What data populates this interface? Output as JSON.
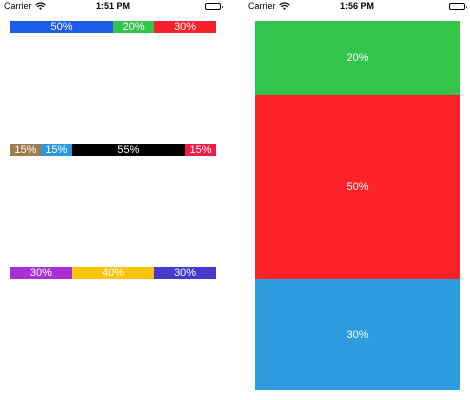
{
  "left_screen": {
    "status_bar": {
      "carrier": "Carrier",
      "time": "1:51 PM",
      "wifi_icon": "wifi-icon",
      "battery_icon": "battery-icon"
    },
    "bars": [
      {
        "segments": [
          {
            "label": "50%",
            "value": 50,
            "color": "#1b5de7"
          },
          {
            "label": "20%",
            "value": 20,
            "color": "#34c44c"
          },
          {
            "label": "30%",
            "value": 30,
            "color": "#f5212c"
          }
        ]
      },
      {
        "segments": [
          {
            "label": "15%",
            "value": 15,
            "color": "#9d7b4e"
          },
          {
            "label": "15%",
            "value": 15,
            "color": "#2c98dc"
          },
          {
            "label": "55%",
            "value": 55,
            "color": "#000000"
          },
          {
            "label": "15%",
            "value": 15,
            "color": "#ef1d45"
          }
        ]
      },
      {
        "segments": [
          {
            "label": "30%",
            "value": 30,
            "color": "#a830d4"
          },
          {
            "label": "40%",
            "value": 40,
            "color": "#fbc408"
          },
          {
            "label": "30%",
            "value": 30,
            "color": "#4739cc"
          }
        ]
      }
    ]
  },
  "right_screen": {
    "status_bar": {
      "carrier": "Carrier",
      "time": "1:56 PM",
      "wifi_icon": "wifi-icon",
      "battery_icon": "battery-icon"
    },
    "stacked_bar": {
      "segments": [
        {
          "label": "20%",
          "value": 20,
          "color": "#33c44c"
        },
        {
          "label": "50%",
          "value": 50,
          "color": "#fe2127"
        },
        {
          "label": "30%",
          "value": 30,
          "color": "#2e9ddf"
        }
      ]
    }
  }
}
